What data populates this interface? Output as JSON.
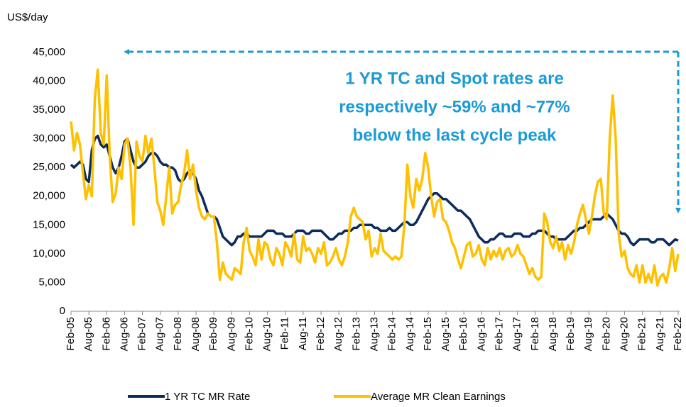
{
  "chart_data": {
    "type": "line",
    "y_label": "US$/day",
    "annotation": [
      "1 YR TC and Spot rates are",
      "respectively ~59% and ~77%",
      "below the last cycle peak"
    ],
    "categories": [
      "Feb-05",
      null,
      null,
      null,
      null,
      null,
      "Aug-05",
      null,
      null,
      null,
      null,
      null,
      "Feb-06",
      null,
      null,
      null,
      null,
      null,
      "Aug-06",
      null,
      null,
      null,
      null,
      null,
      "Feb-07",
      null,
      null,
      null,
      null,
      null,
      "Aug-07",
      null,
      null,
      null,
      null,
      null,
      "Feb-08",
      null,
      null,
      null,
      null,
      null,
      "Aug-08",
      null,
      null,
      null,
      null,
      null,
      "Feb-09",
      null,
      null,
      null,
      null,
      null,
      "Aug-09",
      null,
      null,
      null,
      null,
      null,
      "Feb-10",
      null,
      null,
      null,
      null,
      null,
      "Aug-10",
      null,
      null,
      null,
      null,
      null,
      "Feb-11",
      null,
      null,
      null,
      null,
      null,
      "Aug-11",
      null,
      null,
      null,
      null,
      null,
      "Feb-12",
      null,
      null,
      null,
      null,
      null,
      "Aug-12",
      null,
      null,
      null,
      null,
      null,
      "Feb-13",
      null,
      null,
      null,
      null,
      null,
      "Aug-13",
      null,
      null,
      null,
      null,
      null,
      "Feb-14",
      null,
      null,
      null,
      null,
      null,
      "Aug-14",
      null,
      null,
      null,
      null,
      null,
      "Feb-15",
      null,
      null,
      null,
      null,
      null,
      "Aug-15",
      null,
      null,
      null,
      null,
      null,
      "Feb-16",
      null,
      null,
      null,
      null,
      null,
      "Aug-16",
      null,
      null,
      null,
      null,
      null,
      "Feb-17",
      null,
      null,
      null,
      null,
      null,
      "Aug-17",
      null,
      null,
      null,
      null,
      null,
      "Feb-18",
      null,
      null,
      null,
      null,
      null,
      "Aug-18",
      null,
      null,
      null,
      null,
      null,
      "Feb-19",
      null,
      null,
      null,
      null,
      null,
      "Aug-19",
      null,
      null,
      null,
      null,
      null,
      "Feb-20",
      null,
      null,
      null,
      null,
      null,
      "Aug-20",
      null,
      null,
      null,
      null,
      null,
      "Feb-21",
      null,
      null,
      null,
      null,
      null,
      "Aug-21",
      null,
      null,
      null,
      null,
      null,
      "Feb-22"
    ],
    "series": [
      {
        "name": "1 YR TC MR Rate",
        "color": "#0d2b5c",
        "values": [
          25500,
          25000,
          25500,
          26000,
          25500,
          23000,
          22500,
          28000,
          30000,
          30500,
          29000,
          28500,
          29000,
          27000,
          25000,
          24000,
          25000,
          27000,
          29500,
          30000,
          28000,
          26000,
          25000,
          25000,
          25500,
          26000,
          27000,
          27500,
          27500,
          27000,
          26000,
          25500,
          25500,
          25000,
          25000,
          24500,
          23000,
          22500,
          23000,
          24000,
          24500,
          24000,
          23000,
          21000,
          20000,
          18500,
          17000,
          16500,
          16500,
          16000,
          14500,
          13000,
          12500,
          12000,
          11500,
          12000,
          13000,
          13000,
          13500,
          13500,
          13000,
          13000,
          13000,
          13000,
          13000,
          13500,
          14000,
          14000,
          14000,
          13500,
          13500,
          13500,
          13000,
          13000,
          13000,
          13500,
          14000,
          14000,
          14000,
          13500,
          13500,
          14000,
          14000,
          14000,
          14000,
          13500,
          13000,
          12500,
          12500,
          13000,
          13500,
          13500,
          14000,
          14000,
          14000,
          14500,
          14500,
          15000,
          15000,
          15000,
          15000,
          15000,
          14500,
          14500,
          14000,
          14000,
          14000,
          14500,
          14000,
          14000,
          14500,
          15000,
          15500,
          15500,
          15000,
          15000,
          15500,
          16500,
          17500,
          18500,
          19500,
          20000,
          20500,
          20500,
          20000,
          19500,
          19500,
          19000,
          18500,
          18000,
          17500,
          17500,
          17000,
          16500,
          16000,
          15000,
          14000,
          13000,
          12500,
          12000,
          12000,
          12500,
          12500,
          13000,
          13500,
          13500,
          13000,
          13000,
          13000,
          13500,
          13500,
          13500,
          13000,
          13000,
          13000,
          13500,
          13500,
          14000,
          14000,
          14000,
          13500,
          13000,
          13000,
          12500,
          12500,
          12500,
          12500,
          13000,
          13500,
          14000,
          14000,
          14500,
          14500,
          15000,
          15500,
          16000,
          16000,
          16000,
          16000,
          16500,
          17000,
          16500,
          16000,
          15000,
          14000,
          13500,
          13500,
          13000,
          12000,
          11500,
          12000,
          12500,
          12500,
          12500,
          12500,
          12000,
          12000,
          12500,
          12500,
          12500,
          12000,
          11500,
          12000,
          12500,
          12300
        ]
      },
      {
        "name": "Average MR Clean Earnings",
        "color": "#ffc000",
        "values": [
          33000,
          28000,
          31000,
          29000,
          24000,
          19500,
          22000,
          20000,
          37000,
          42000,
          31000,
          29000,
          41000,
          27000,
          19000,
          20500,
          25000,
          23000,
          29000,
          30000,
          25000,
          15000,
          29500,
          27000,
          26000,
          30500,
          27500,
          30000,
          25000,
          19000,
          17500,
          15000,
          20000,
          25000,
          17000,
          18500,
          19000,
          22000,
          24000,
          28000,
          23000,
          25500,
          21000,
          18000,
          16500,
          16000,
          17000,
          16500,
          16500,
          12000,
          5500,
          8500,
          6500,
          6000,
          5500,
          7500,
          7000,
          6500,
          12000,
          14500,
          10500,
          9500,
          8000,
          12500,
          9000,
          12000,
          11500,
          9000,
          8000,
          11000,
          10000,
          8000,
          12000,
          11000,
          9500,
          13500,
          9000,
          8500,
          13000,
          10500,
          11000,
          10000,
          8500,
          11000,
          10000,
          12000,
          8000,
          8500,
          9500,
          11000,
          9000,
          8000,
          9500,
          12000,
          16500,
          18000,
          16500,
          16000,
          15500,
          12500,
          14000,
          9500,
          11000,
          10000,
          13500,
          10500,
          10000,
          9500,
          9000,
          9500,
          9000,
          9500,
          15000,
          25500,
          20000,
          18000,
          23000,
          21000,
          23000,
          27500,
          25000,
          20000,
          16500,
          19000,
          19500,
          16000,
          15500,
          14000,
          12000,
          11000,
          9000,
          7500,
          9500,
          11500,
          12000,
          9500,
          10000,
          11500,
          9000,
          8000,
          11000,
          9000,
          10500,
          9500,
          11000,
          9000,
          10500,
          11000,
          9500,
          10000,
          11500,
          10000,
          9500,
          8000,
          6500,
          7500,
          6000,
          5500,
          6000,
          17000,
          15500,
          12000,
          11000,
          13000,
          10500,
          12000,
          9000,
          11500,
          10000,
          12000,
          15000,
          17000,
          18500,
          16000,
          13500,
          16500,
          20000,
          22500,
          23000,
          17000,
          16000,
          30000,
          37500,
          30000,
          13500,
          9500,
          10500,
          7500,
          6500,
          6000,
          8000,
          5000,
          8000,
          5000,
          6500,
          5000,
          8000,
          4500,
          6000,
          6500,
          5000,
          7500,
          11000,
          7000,
          10000
        ]
      }
    ],
    "ylim": [
      0,
      45000
    ],
    "yticks": [
      0,
      {
        "value": 5000,
        "label": "5,000"
      },
      {
        "value": 10000,
        "label": "10,000"
      },
      {
        "value": 15000,
        "label": "15,000"
      },
      {
        "value": 20000,
        "label": "20,000"
      },
      {
        "value": 25000,
        "label": "25,000"
      },
      {
        "value": 30000,
        "label": "30,000"
      },
      {
        "value": 35000,
        "label": "35,000"
      },
      {
        "value": 40000,
        "label": "40,000"
      },
      {
        "value": 45000,
        "label": "45,000"
      }
    ],
    "grid": false
  }
}
